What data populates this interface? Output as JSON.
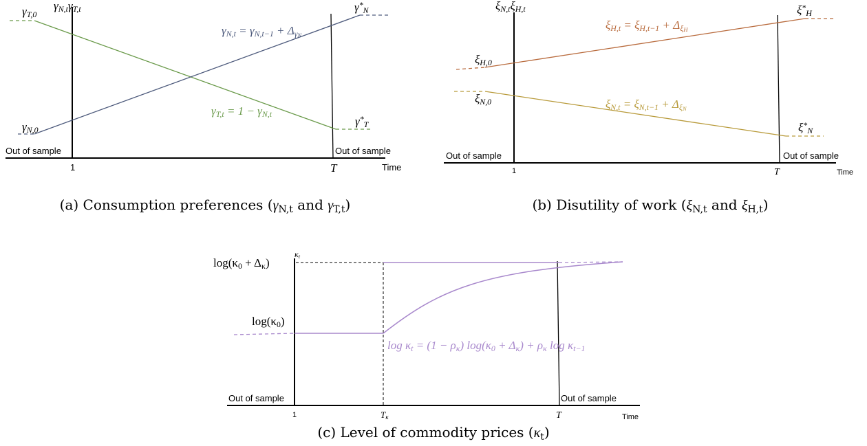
{
  "panel_a": {
    "y_axis_label": [
      "γ",
      {
        "sub": "N,t"
      },
      "γ",
      {
        "sub": "T,t"
      }
    ],
    "start_label_T": [
      "γ",
      {
        "sub": "T,0"
      }
    ],
    "start_label_N": [
      "γ",
      {
        "sub": "N,0"
      }
    ],
    "end_label_N": [
      "γ",
      {
        "sup": "*"
      },
      {
        "sub": "N"
      }
    ],
    "end_label_T": [
      "γ",
      {
        "sup": "*"
      },
      {
        "sub": "T"
      }
    ],
    "equation_N": [
      "γ",
      {
        "sub": "N,t"
      },
      " = γ",
      {
        "sub": "N,t−1"
      },
      " + Δ",
      {
        "sub": "γ"
      },
      {
        "subsub": "N"
      }
    ],
    "equation_T": [
      "γ",
      {
        "sub": "T,t"
      },
      " = 1 − γ",
      {
        "sub": "N,t"
      }
    ],
    "out_left": "Out of sample",
    "out_right": "Out of sample",
    "x_tick_1": "1",
    "x_tick_T": "T",
    "x_label": "Time",
    "caption": [
      "(a) Consumption preferences (",
      {
        "i": "γ"
      },
      {
        "sub": "N,t"
      },
      " and ",
      {
        "i": "γ"
      },
      {
        "sub": "T,t"
      },
      ")"
    ]
  },
  "panel_b": {
    "y_axis_label": [
      "ξ",
      {
        "sub": "N,t"
      },
      "ξ",
      {
        "sub": "H,t"
      }
    ],
    "start_label_H": [
      "ξ",
      {
        "sub": "H,0"
      }
    ],
    "start_label_N": [
      "ξ",
      {
        "sub": "N,0"
      }
    ],
    "end_label_H": [
      "ξ",
      {
        "sup": "*"
      },
      {
        "sub": "H"
      }
    ],
    "end_label_N": [
      "ξ",
      {
        "sup": "*"
      },
      {
        "sub": "N"
      }
    ],
    "equation_H": [
      "ξ",
      {
        "sub": "H,t"
      },
      " = ξ",
      {
        "sub": "H,t−1"
      },
      " + Δ",
      {
        "sub": "ξ"
      },
      {
        "subsub": "H"
      }
    ],
    "equation_N": [
      "ξ",
      {
        "sub": "N,t"
      },
      " = ξ",
      {
        "sub": "N,t−1"
      },
      " + Δ",
      {
        "sub": "ξ"
      },
      {
        "subsub": "N"
      }
    ],
    "out_left": "Out of sample",
    "out_right": "Out of sample",
    "x_tick_1": "1",
    "x_tick_T": "T",
    "x_label": "Time",
    "caption": [
      "(b) Disutility of work (",
      {
        "i": "ξ"
      },
      {
        "sub": "N,t"
      },
      " and ",
      {
        "i": "ξ"
      },
      {
        "sub": "H,t"
      },
      ")"
    ]
  },
  "panel_c": {
    "y_axis_label": [
      "κ",
      {
        "sub": "t"
      }
    ],
    "high_label": [
      "log(κ",
      {
        "sub": "0"
      },
      " + Δ",
      {
        "sub": "κ"
      },
      ")"
    ],
    "low_label": [
      "log(κ",
      {
        "sub": "0"
      },
      ")"
    ],
    "equation": [
      "log κ",
      {
        "sub": "t"
      },
      " = (1 − ρ",
      {
        "sub": "κ"
      },
      ") log(κ",
      {
        "sub": "0"
      },
      " + Δ",
      {
        "sub": "κ"
      },
      ") + ρ",
      {
        "sub": "κ"
      },
      " log κ",
      {
        "sub": "t−1"
      }
    ],
    "out_left": "Out of sample",
    "out_right": "Out of sample",
    "x_tick_1": "1",
    "x_tick_Tk": [
      "T",
      {
        "sub": "κ"
      }
    ],
    "x_tick_T": "T",
    "x_label": "Time",
    "caption": [
      "(c) Level of commodity prices (",
      {
        "i": "κ"
      },
      {
        "sub": "t"
      },
      ")"
    ]
  }
}
